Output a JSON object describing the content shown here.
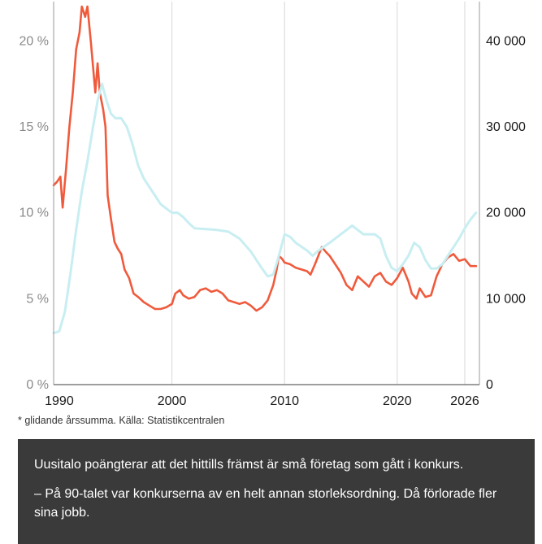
{
  "chart_data": {
    "type": "line",
    "y_left": {
      "ticks": [
        "0 %",
        "5 %",
        "10 %",
        "15 %",
        "20 %"
      ],
      "values": [
        0,
        5,
        10,
        15,
        20
      ],
      "range": [
        0,
        22
      ]
    },
    "y_right": {
      "ticks": [
        "0",
        "10 000",
        "20 000",
        "30 000",
        "40 000"
      ],
      "values": [
        0,
        10000,
        20000,
        30000,
        40000
      ],
      "range": [
        0,
        44000
      ]
    },
    "x": {
      "ticks": [
        "1990",
        "2000",
        "2010",
        "2020",
        "2026"
      ],
      "values": [
        1990,
        2000,
        2010,
        2020,
        2026
      ],
      "range": [
        1989.5,
        2027.3
      ]
    },
    "grid": "vertical",
    "series": [
      {
        "axis": "left",
        "color": "#f05a3c",
        "points": [
          [
            1989.5,
            11.6
          ],
          [
            1989.8,
            11.8
          ],
          [
            1990.1,
            12.1
          ],
          [
            1990.3,
            10.3
          ],
          [
            1990.6,
            12.5
          ],
          [
            1990.9,
            15.0
          ],
          [
            1991.2,
            17.0
          ],
          [
            1991.5,
            19.5
          ],
          [
            1991.8,
            20.5
          ],
          [
            1992.0,
            22.0
          ],
          [
            1992.3,
            21.4
          ],
          [
            1992.5,
            22.0
          ],
          [
            1992.8,
            20.0
          ],
          [
            1993.0,
            18.5
          ],
          [
            1993.2,
            17.0
          ],
          [
            1993.4,
            18.7
          ],
          [
            1993.6,
            17.0
          ],
          [
            1993.9,
            16.0
          ],
          [
            1994.1,
            15.0
          ],
          [
            1994.3,
            11.0
          ],
          [
            1994.6,
            9.6
          ],
          [
            1994.9,
            8.3
          ],
          [
            1995.2,
            7.9
          ],
          [
            1995.5,
            7.6
          ],
          [
            1995.8,
            6.7
          ],
          [
            1996.2,
            6.2
          ],
          [
            1996.6,
            5.3
          ],
          [
            1997.0,
            5.1
          ],
          [
            1997.5,
            4.8
          ],
          [
            1998.0,
            4.6
          ],
          [
            1998.5,
            4.4
          ],
          [
            1999.0,
            4.4
          ],
          [
            1999.5,
            4.5
          ],
          [
            2000.0,
            4.7
          ],
          [
            2000.3,
            5.3
          ],
          [
            2000.7,
            5.5
          ],
          [
            2001.0,
            5.2
          ],
          [
            2001.5,
            5.0
          ],
          [
            2002.0,
            5.1
          ],
          [
            2002.5,
            5.5
          ],
          [
            2003.0,
            5.6
          ],
          [
            2003.5,
            5.4
          ],
          [
            2004.0,
            5.5
          ],
          [
            2004.5,
            5.3
          ],
          [
            2005.0,
            4.9
          ],
          [
            2005.5,
            4.8
          ],
          [
            2006.0,
            4.7
          ],
          [
            2006.5,
            4.8
          ],
          [
            2007.0,
            4.6
          ],
          [
            2007.5,
            4.3
          ],
          [
            2008.0,
            4.5
          ],
          [
            2008.5,
            4.9
          ],
          [
            2009.0,
            5.8
          ],
          [
            2009.3,
            6.7
          ],
          [
            2009.5,
            7.5
          ],
          [
            2009.8,
            7.3
          ],
          [
            2010.0,
            7.1
          ],
          [
            2010.5,
            7.0
          ],
          [
            2011.0,
            6.8
          ],
          [
            2011.5,
            6.7
          ],
          [
            2012.0,
            6.6
          ],
          [
            2012.3,
            6.4
          ],
          [
            2012.7,
            7.0
          ],
          [
            2013.0,
            7.5
          ],
          [
            2013.3,
            8.0
          ],
          [
            2013.7,
            7.7
          ],
          [
            2014.0,
            7.5
          ],
          [
            2014.5,
            7.0
          ],
          [
            2015.0,
            6.5
          ],
          [
            2015.5,
            5.8
          ],
          [
            2016.0,
            5.5
          ],
          [
            2016.5,
            6.3
          ],
          [
            2017.0,
            6.0
          ],
          [
            2017.5,
            5.7
          ],
          [
            2018.0,
            6.3
          ],
          [
            2018.5,
            6.5
          ],
          [
            2019.0,
            6.0
          ],
          [
            2019.5,
            5.8
          ],
          [
            2020.0,
            6.2
          ],
          [
            2020.5,
            6.8
          ],
          [
            2021.0,
            6.0
          ],
          [
            2021.3,
            5.3
          ],
          [
            2021.7,
            5.0
          ],
          [
            2022.0,
            5.6
          ],
          [
            2022.5,
            5.1
          ],
          [
            2023.0,
            5.2
          ],
          [
            2023.5,
            6.3
          ],
          [
            2024.0,
            7.0
          ],
          [
            2024.5,
            7.4
          ],
          [
            2025.0,
            7.6
          ],
          [
            2025.5,
            7.2
          ],
          [
            2026.0,
            7.3
          ],
          [
            2026.5,
            6.9
          ],
          [
            2027.0,
            6.9
          ]
        ]
      },
      {
        "axis": "right",
        "color": "#c8eef2",
        "points": [
          [
            1989.5,
            6000
          ],
          [
            1990.0,
            6200
          ],
          [
            1990.5,
            8500
          ],
          [
            1991.0,
            13000
          ],
          [
            1991.5,
            18000
          ],
          [
            1992.0,
            22500
          ],
          [
            1992.5,
            26000
          ],
          [
            1993.0,
            30000
          ],
          [
            1993.4,
            33000
          ],
          [
            1993.8,
            35000
          ],
          [
            1994.2,
            33000
          ],
          [
            1994.6,
            31500
          ],
          [
            1995.0,
            31000
          ],
          [
            1995.5,
            31000
          ],
          [
            1996.0,
            30000
          ],
          [
            1996.5,
            28000
          ],
          [
            1997.0,
            25500
          ],
          [
            1997.5,
            24000
          ],
          [
            1998.0,
            23000
          ],
          [
            1998.5,
            22000
          ],
          [
            1999.0,
            21000
          ],
          [
            1999.5,
            20500
          ],
          [
            2000.0,
            20000
          ],
          [
            2000.5,
            20000
          ],
          [
            2001.0,
            19500
          ],
          [
            2001.5,
            18800
          ],
          [
            2002.0,
            18200
          ],
          [
            2003.0,
            18100
          ],
          [
            2004.0,
            18000
          ],
          [
            2005.0,
            17800
          ],
          [
            2006.0,
            17000
          ],
          [
            2007.0,
            15500
          ],
          [
            2008.0,
            13500
          ],
          [
            2008.5,
            12600
          ],
          [
            2009.0,
            12800
          ],
          [
            2009.5,
            15000
          ],
          [
            2010.0,
            17500
          ],
          [
            2010.5,
            17200
          ],
          [
            2011.0,
            16500
          ],
          [
            2012.0,
            15600
          ],
          [
            2012.5,
            15000
          ],
          [
            2013.0,
            15600
          ],
          [
            2014.0,
            16500
          ],
          [
            2015.0,
            17500
          ],
          [
            2015.5,
            18000
          ],
          [
            2016.0,
            18500
          ],
          [
            2016.5,
            18000
          ],
          [
            2017.0,
            17500
          ],
          [
            2018.0,
            17500
          ],
          [
            2018.5,
            17000
          ],
          [
            2019.0,
            15000
          ],
          [
            2019.5,
            13600
          ],
          [
            2020.0,
            13200
          ],
          [
            2020.5,
            14000
          ],
          [
            2021.0,
            15000
          ],
          [
            2021.5,
            16500
          ],
          [
            2022.0,
            16000
          ],
          [
            2022.5,
            14500
          ],
          [
            2023.0,
            13500
          ],
          [
            2023.5,
            13500
          ],
          [
            2024.0,
            14000
          ],
          [
            2024.5,
            15000
          ],
          [
            2025.0,
            16000
          ],
          [
            2025.5,
            17000
          ],
          [
            2026.0,
            18200
          ],
          [
            2026.5,
            19200
          ],
          [
            2027.0,
            20000
          ]
        ]
      }
    ]
  },
  "footnote": "* glidande årssumma. Källa: Statistikcentralen",
  "quote": {
    "paragraph_1": "Uusitalo poängterar att det hittills främst är små företag som gått i konkurs.",
    "paragraph_2": "– På 90-talet var konkurserna av en helt annan storleksordning. Då förlorade fler sina jobb."
  }
}
